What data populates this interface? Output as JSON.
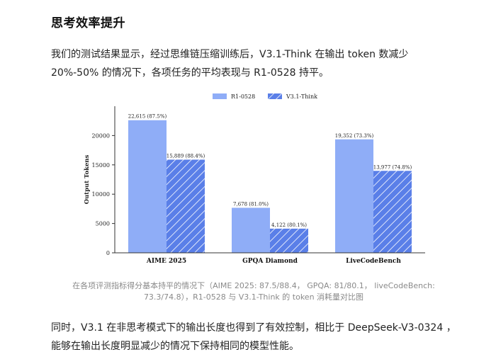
{
  "section": {
    "title": "思考效率提升",
    "intro": "我们的测试结果显示，经过思维链压缩训练后，V3.1-Think 在输出 token 数减少 20%-50% 的情况下，各项任务的平均表现与 R1-0528 持平。",
    "caption": "在各项评测指标得分基本持平的情况下（AIME 2025: 87.5/88.4， GPQA: 81/80.1， liveCodeBench: 73.3/74.8），R1-0528 与 V3.1-Think 的 token 消耗量对比图",
    "outro": "同时，V3.1 在非思考模式下的输出长度也得到了有效控制，相比于 DeepSeek-V3-0324 ，能够在输出长度明显减少的情况下保持相同的模型性能。"
  },
  "chart_data": {
    "type": "bar",
    "categories": [
      "AIME 2025",
      "GPQA Diamond",
      "LiveCodeBench"
    ],
    "ylabel": "Output Tokens",
    "ylim": [
      0,
      25000
    ],
    "yticks": [
      "0",
      "5000",
      "10000",
      "15000",
      "20000"
    ],
    "legend_position": "top-center",
    "series": [
      {
        "name": "R1-0528",
        "color": "#8fadf7",
        "values": [
          22615,
          7678,
          19352
        ],
        "labels": [
          "22,615 (87.5%)",
          "7,678 (81.0%)",
          "19,352 (73.3%)"
        ]
      },
      {
        "name": "V3.1-Think",
        "color": "#5a7fe8",
        "pattern": "hatched",
        "values": [
          15889,
          4122,
          13977
        ],
        "labels": [
          "15,889 (88.4%)",
          "4,122 (80.1%)",
          "13,977 (74.8%)"
        ]
      }
    ]
  }
}
